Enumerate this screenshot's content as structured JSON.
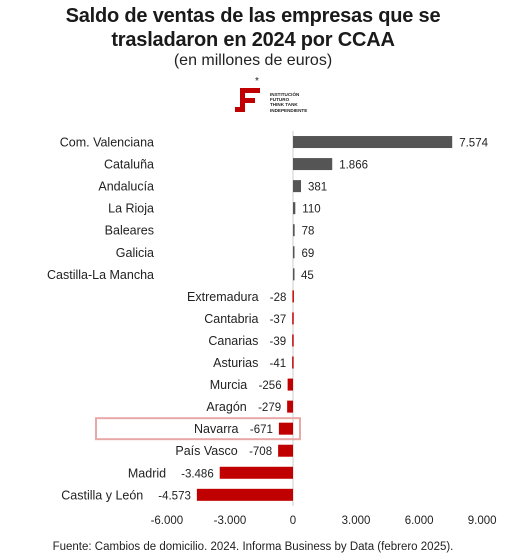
{
  "chart_data": {
    "type": "bar",
    "orientation": "horizontal",
    "title": [
      "Saldo de ventas de las empresas que se",
      "trasladaron en 2024 por CCAA"
    ],
    "subtitle": "(en millones de euros)",
    "categories": [
      "Com. Valenciana",
      "Cataluña",
      "Andalucía",
      "La Rioja",
      "Baleares",
      "Galicia",
      "Castilla-La Mancha",
      "Extremadura",
      "Cantabria",
      "Canarias",
      "Asturias",
      "Murcia",
      "Aragón",
      "Navarra",
      "País Vasco",
      "Madrid",
      "Castilla y León"
    ],
    "values": [
      7574,
      1866,
      381,
      110,
      78,
      69,
      45,
      -28,
      -37,
      -39,
      -41,
      -256,
      -279,
      -671,
      -708,
      -3486,
      -4573
    ],
    "value_labels": [
      "7.574",
      "1.866",
      "381",
      "110",
      "78",
      "69",
      "45",
      "-28",
      "-37",
      "-39",
      "-41",
      "-256",
      "-279",
      "-671",
      "-708",
      "-3.486",
      "-4.573"
    ],
    "xlim": [
      -6000,
      9000
    ],
    "xticks": [
      -6000,
      -3000,
      0,
      3000,
      6000,
      9000
    ],
    "xtick_labels": [
      "-6.000",
      "-3.000",
      "0",
      "3.000",
      "6.000",
      "9.000"
    ],
    "highlighted_category": "Navarra",
    "colors": {
      "positive": "#555555",
      "negative": "#c00000",
      "highlight_box": "#e8a8a8",
      "axis": "#cccccc"
    },
    "grid": false,
    "legend": "none",
    "source": "Fuente: Cambios de domicilio. 2024. Informa Business by Data (febrero 2025)."
  },
  "logo": {
    "asterisk": "*",
    "text": "INSTITUCIÓN\nFUTURO\nTHINK TANK\nINDEPENDIENTE",
    "color": "#c00000"
  }
}
